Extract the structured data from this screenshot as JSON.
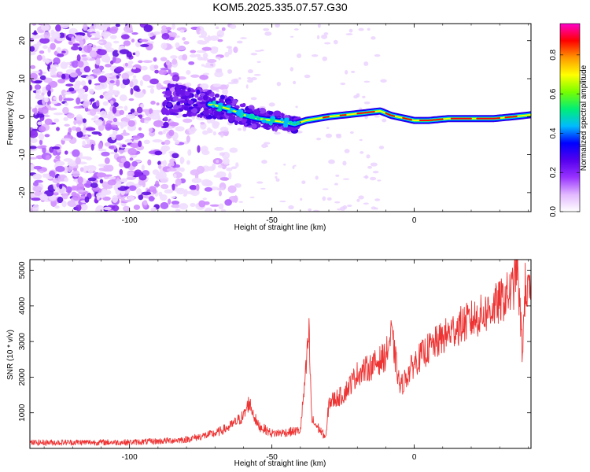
{
  "title": "KOM5.2025.335.07.57.G30",
  "chart_data": [
    {
      "type": "heatmap",
      "name": "spectrogram",
      "xlabel": "Height of straight line (km)",
      "ylabel": "Frequency (Hz)",
      "xlim": [
        -135,
        41
      ],
      "ylim": [
        -25,
        24.5
      ],
      "xticks": [
        -100,
        -50,
        0
      ],
      "yticks": [
        -20,
        -10,
        0,
        10,
        20
      ],
      "colorbar": {
        "label": "Normalized spectral amplitude",
        "ticks": [
          0.0,
          0.2,
          0.4,
          0.6,
          0.8
        ],
        "range": [
          0,
          0.96
        ],
        "stops": [
          "#ffffff",
          "#e2b8ff",
          "#9933ff",
          "#5500ee",
          "#0000ff",
          "#00bbff",
          "#00ee77",
          "#77ff00",
          "#ffff00",
          "#ff9900",
          "#ff0000",
          "#ff00cc"
        ]
      },
      "ridge": {
        "x": [
          -87,
          -80,
          -75,
          -70,
          -65,
          -60,
          -55,
          -50,
          -45,
          -42,
          -38,
          -30,
          -20,
          -12,
          -8,
          -3,
          0,
          5,
          12,
          20,
          28,
          35,
          41
        ],
        "y": [
          4.5,
          4,
          3.5,
          3,
          2,
          0.5,
          -0.5,
          -1,
          -1.5,
          -2,
          -1,
          0,
          0.8,
          1.5,
          0.3,
          -0.5,
          -1,
          -1,
          -0.5,
          -0.5,
          -0.5,
          0,
          0.5
        ]
      }
    },
    {
      "type": "line",
      "name": "snr",
      "xlabel": "Height of straight line (km)",
      "ylabel": "SNR (10 * v/v)",
      "xlim": [
        -135,
        41
      ],
      "ylim": [
        0,
        5300
      ],
      "xticks": [
        -100,
        -50,
        0
      ],
      "yticks": [
        1000,
        2000,
        3000,
        4000,
        5000
      ],
      "color": "#ee3333",
      "series": {
        "x": [
          -135,
          -120,
          -100,
          -90,
          -80,
          -70,
          -65,
          -60,
          -58,
          -55,
          -50,
          -45,
          -40,
          -38,
          -37,
          -36,
          -35,
          -33,
          -31,
          -30,
          -25,
          -20,
          -15,
          -10,
          -8,
          -5,
          0,
          5,
          10,
          15,
          20,
          25,
          30,
          34,
          35,
          36,
          37,
          38,
          39,
          40,
          41
        ],
        "y": [
          160,
          170,
          170,
          200,
          250,
          420,
          600,
          900,
          1300,
          650,
          420,
          450,
          500,
          2200,
          3300,
          800,
          700,
          500,
          300,
          1300,
          1500,
          2100,
          2300,
          2600,
          3200,
          1700,
          2400,
          2800,
          3100,
          3400,
          3600,
          3800,
          4100,
          4400,
          4600,
          5300,
          4000,
          2700,
          4600,
          4300,
          4400
        ]
      }
    }
  ]
}
